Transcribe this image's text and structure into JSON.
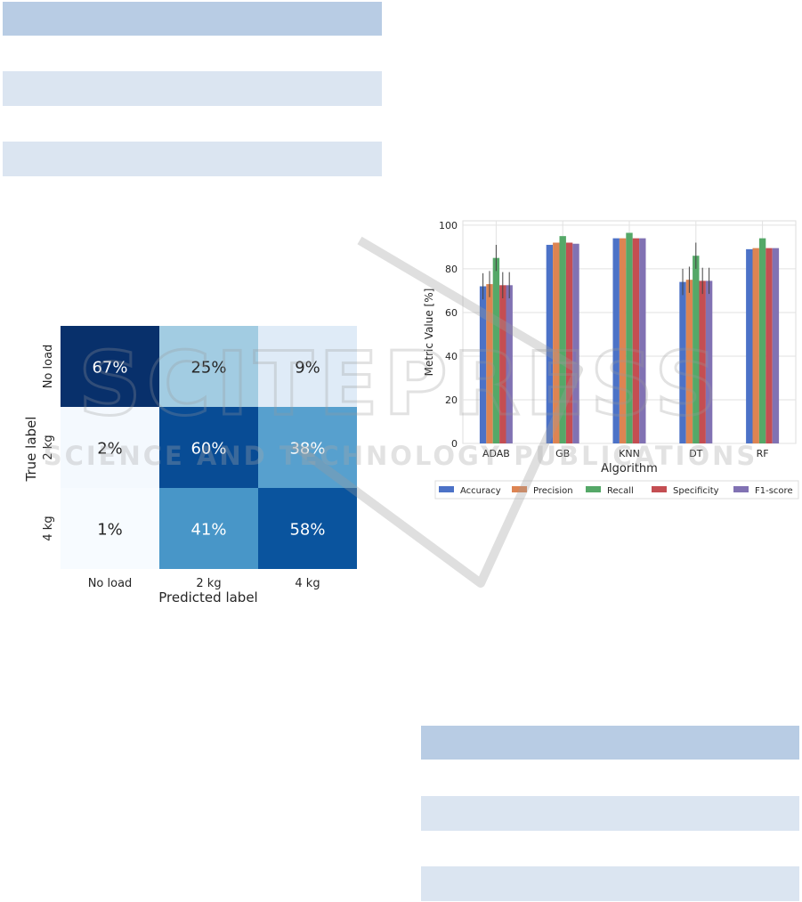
{
  "watermark": {
    "main": "SCITEPRESS",
    "sub": "SCIENCE AND TECHNOLOGY PUBLICATIONS"
  },
  "chart_data": [
    {
      "type": "heatmap",
      "xlabel": "Predicted label",
      "ylabel": "True label",
      "x_categories": [
        "No load",
        "2 kg",
        "4 kg"
      ],
      "y_categories": [
        "No load",
        "2 kg",
        "4 kg"
      ],
      "values": [
        [
          67,
          25,
          9
        ],
        [
          2,
          60,
          38
        ],
        [
          1,
          41,
          58
        ]
      ],
      "value_suffix": "%",
      "colormap": "Blues"
    },
    {
      "type": "bar",
      "xlabel": "Algorithm",
      "ylabel": "Metric Value [%]",
      "categories": [
        "ADAB",
        "GB",
        "KNN",
        "DT",
        "RF"
      ],
      "ylim": [
        0,
        100
      ],
      "yticks": [
        0,
        20,
        40,
        60,
        80,
        100
      ],
      "grid": true,
      "legend_position": "bottom",
      "series": [
        {
          "name": "Accuracy",
          "color": "#4c72c7",
          "values": [
            72,
            91,
            94,
            74,
            89
          ],
          "errors": [
            6,
            0,
            0,
            6,
            0
          ]
        },
        {
          "name": "Precision",
          "color": "#dd8452",
          "values": [
            73,
            92,
            94,
            75,
            89.5
          ],
          "errors": [
            6,
            0,
            0,
            6,
            0
          ]
        },
        {
          "name": "Recall",
          "color": "#55a868",
          "values": [
            85,
            95,
            96.5,
            86,
            94
          ],
          "errors": [
            6,
            0,
            0,
            6,
            0
          ]
        },
        {
          "name": "Specificity",
          "color": "#c44e52",
          "values": [
            72.5,
            92,
            94,
            74.5,
            89.5
          ],
          "errors": [
            6,
            0,
            0,
            6,
            0
          ]
        },
        {
          "name": "F1-score",
          "color": "#8172b3",
          "values": [
            72.5,
            91.5,
            94,
            74.5,
            89.5
          ],
          "errors": [
            6,
            0,
            0,
            6,
            0
          ]
        }
      ]
    }
  ]
}
